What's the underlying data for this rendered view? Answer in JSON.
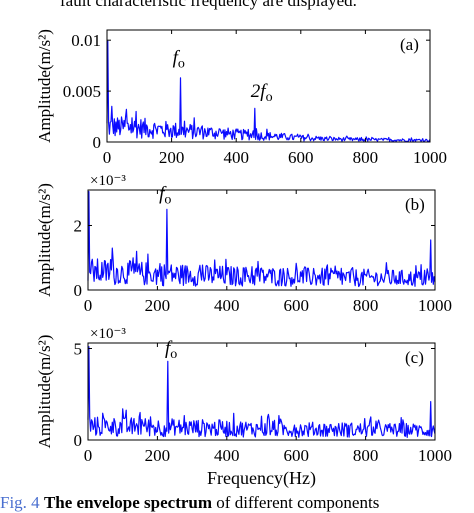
{
  "captions": {
    "top": "fault characteristic frequency are displayed.",
    "bottom_fig": "Fig. 4",
    "bottom_bold": "The envelope spectrum",
    "bottom_rest": "of different components"
  },
  "colors": {
    "series": "#0b0bff",
    "axis": "#000000"
  },
  "chart_data": [
    {
      "type": "line",
      "panel_label": "(a)",
      "ylabel": "Amplitude(m/s²)",
      "xlabel": "",
      "y_multiplier": "",
      "xlim": [
        0,
        1000
      ],
      "ylim": [
        0,
        0.011
      ],
      "x_ticks": [
        0,
        200,
        400,
        600,
        800,
        1000
      ],
      "y_ticks": [
        0,
        0.005,
        0.01
      ],
      "y_tick_labels": [
        "0",
        "0.005",
        "0.01"
      ],
      "annotations": [
        {
          "text": "f",
          "sub": "o",
          "x": 228,
          "y": 0.0077
        },
        {
          "text": "2f",
          "sub": "o",
          "x": 470,
          "y": 0.0044
        }
      ],
      "series": [
        {
          "peaks": [
            [
              2,
              0.0099
            ],
            [
              228,
              0.0063
            ],
            [
              457,
              0.0033
            ],
            [
              15,
              0.0035
            ],
            [
              60,
              0.0032
            ],
            [
              90,
              0.003
            ]
          ],
          "noise_envelope": [
            [
              0,
              0.0026
            ],
            [
              100,
              0.0024
            ],
            [
              200,
              0.002
            ],
            [
              300,
              0.0017
            ],
            [
              400,
              0.0013
            ],
            [
              500,
              0.001
            ],
            [
              600,
              0.0007
            ],
            [
              700,
              0.0005
            ],
            [
              800,
              0.0004
            ],
            [
              1000,
              0.0003
            ]
          ]
        }
      ]
    },
    {
      "type": "line",
      "panel_label": "(b)",
      "ylabel": "Amplitude(m/s²)",
      "xlabel": "",
      "y_multiplier": "×10⁻³",
      "xlim": [
        0,
        1000
      ],
      "ylim": [
        0,
        3.1
      ],
      "x_ticks": [
        0,
        200,
        400,
        600,
        800,
        1000
      ],
      "y_ticks": [
        0,
        2
      ],
      "y_tick_labels": [
        "0",
        "2"
      ],
      "annotations": [
        {
          "text": "f",
          "sub": "o",
          "x": 228,
          "y": 2.8
        }
      ],
      "series": [
        {
          "peaks": [
            [
              2,
              3.05
            ],
            [
              228,
              2.5
            ],
            [
              987,
              1.55
            ],
            [
              70,
              1.3
            ],
            [
              140,
              1.2
            ]
          ],
          "noise_envelope": [
            [
              0,
              1.0
            ],
            [
              200,
              0.85
            ],
            [
              400,
              0.75
            ],
            [
              600,
              0.7
            ],
            [
              800,
              0.65
            ],
            [
              1000,
              0.6
            ]
          ]
        }
      ]
    },
    {
      "type": "line",
      "panel_label": "(c)",
      "ylabel": "Amplitude(m/s²)",
      "xlabel": "Frequency(Hz)",
      "y_multiplier": "×10⁻³",
      "xlim": [
        0,
        1000
      ],
      "ylim": [
        0,
        5.3
      ],
      "x_ticks": [
        0,
        200,
        400,
        600,
        800,
        1000
      ],
      "y_ticks": [
        0,
        5
      ],
      "y_tick_labels": [
        "0",
        "5"
      ],
      "annotations": [
        {
          "text": "f",
          "sub": "o",
          "x": 245,
          "y": 4.7
        }
      ],
      "series": [
        {
          "peaks": [
            [
              2,
              5.1
            ],
            [
              229,
              4.3
            ],
            [
              987,
              2.1
            ],
            [
              100,
              1.7
            ],
            [
              150,
              1.5
            ],
            [
              520,
              1.4
            ]
          ],
          "noise_envelope": [
            [
              0,
              1.3
            ],
            [
              200,
              1.2
            ],
            [
              400,
              1.1
            ],
            [
              600,
              1.0
            ],
            [
              800,
              0.95
            ],
            [
              1000,
              0.9
            ]
          ]
        }
      ]
    }
  ]
}
